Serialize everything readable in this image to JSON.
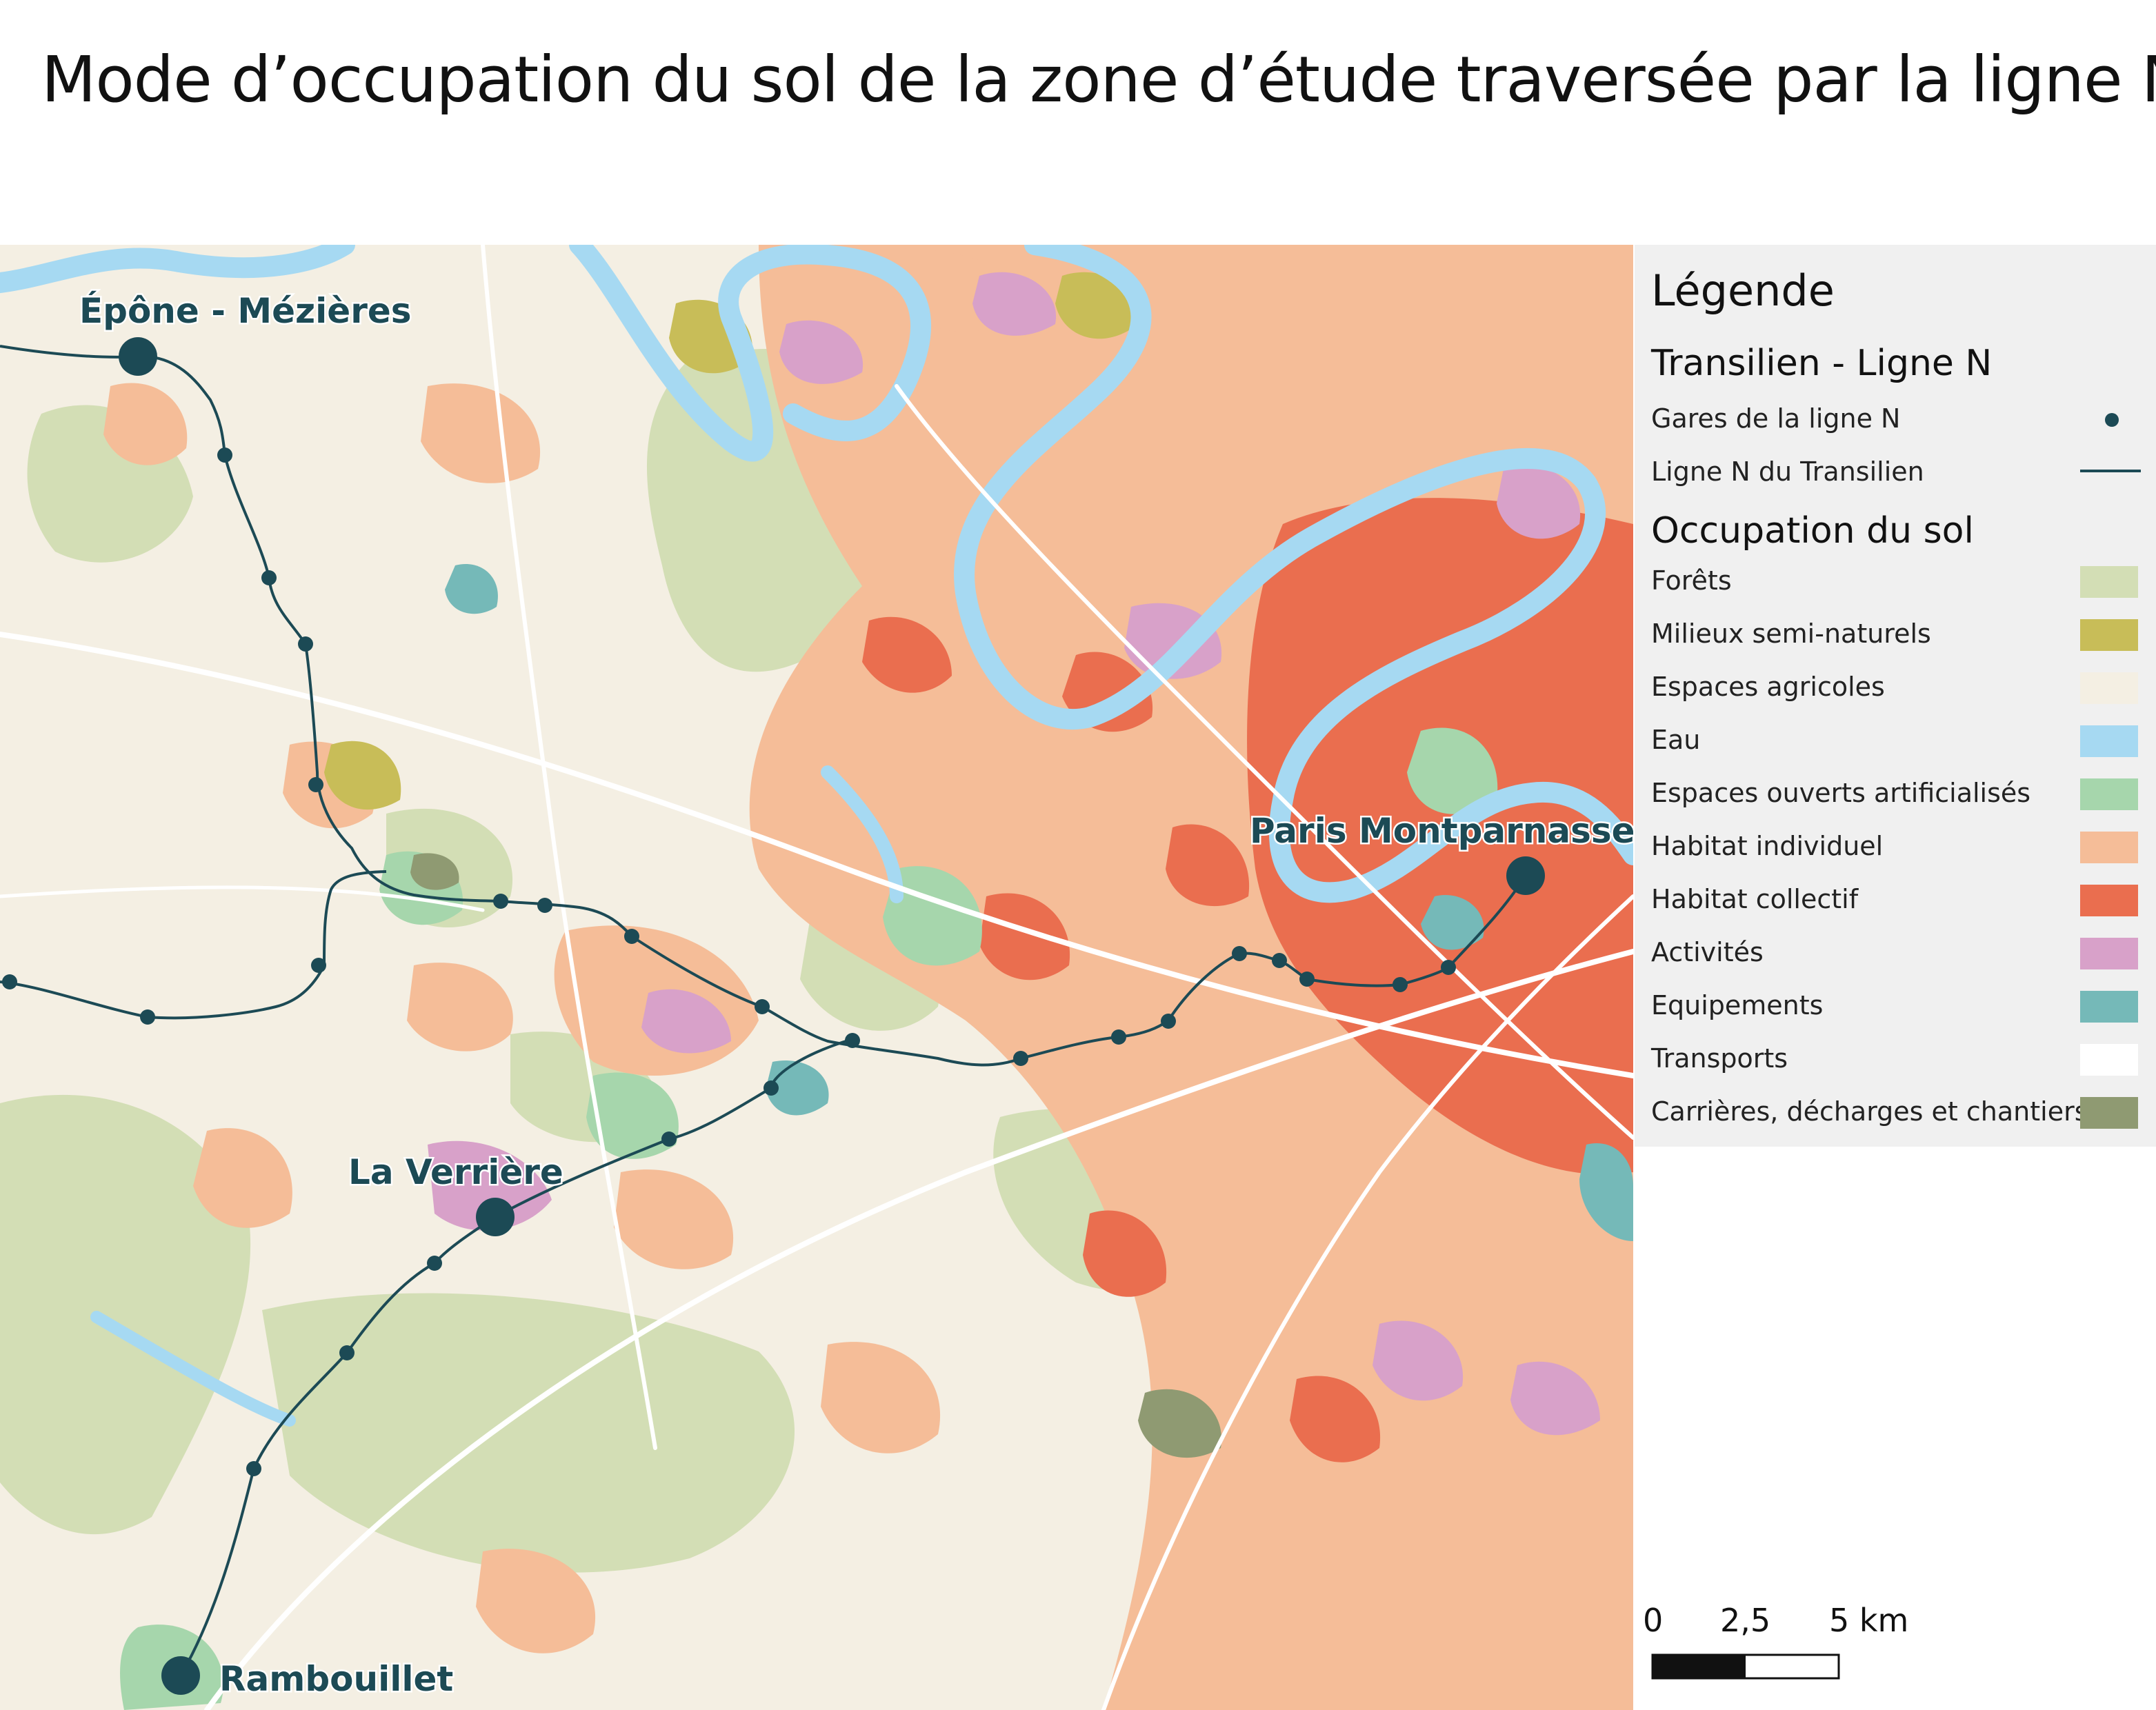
{
  "title": "Mode d’occupation du sol de la zone d’étude traversée par la ligne N",
  "map": {
    "stations_major": [
      {
        "name": "Épône - Mézières"
      },
      {
        "name": "La Verrière"
      },
      {
        "name": "Paris Montparnasse"
      },
      {
        "name": "Rambouillet"
      }
    ]
  },
  "legend": {
    "title": "Légende",
    "section_line": "Transilien - Ligne N",
    "stations_label": "Gares de la ligne N",
    "line_label": "Ligne N du Transilien",
    "line_color": "#1c4a55",
    "section_landuse": "Occupation du sol",
    "classes": [
      {
        "label": "Forêts",
        "color": "#d3deb5"
      },
      {
        "label": "Milieux semi-naturels",
        "color": "#c8bd58"
      },
      {
        "label": "Espaces agricoles",
        "color": "#f4efe3"
      },
      {
        "label": "Eau",
        "color": "#a6d9f2"
      },
      {
        "label": "Espaces ouverts artificialisés",
        "color": "#a6d6ac"
      },
      {
        "label": "Habitat individuel",
        "color": "#f5bd98"
      },
      {
        "label": "Habitat collectif",
        "color": "#ea6e4f"
      },
      {
        "label": "Activités",
        "color": "#d8a1c9"
      },
      {
        "label": "Equipements",
        "color": "#75b9b8"
      },
      {
        "label": "Transports",
        "color": "#ffffff"
      },
      {
        "label": "Carrières, décharges et chantiers",
        "color": "#8f9a72"
      }
    ]
  },
  "scale": {
    "ticks": [
      "0",
      "2,5",
      "5 km"
    ]
  }
}
